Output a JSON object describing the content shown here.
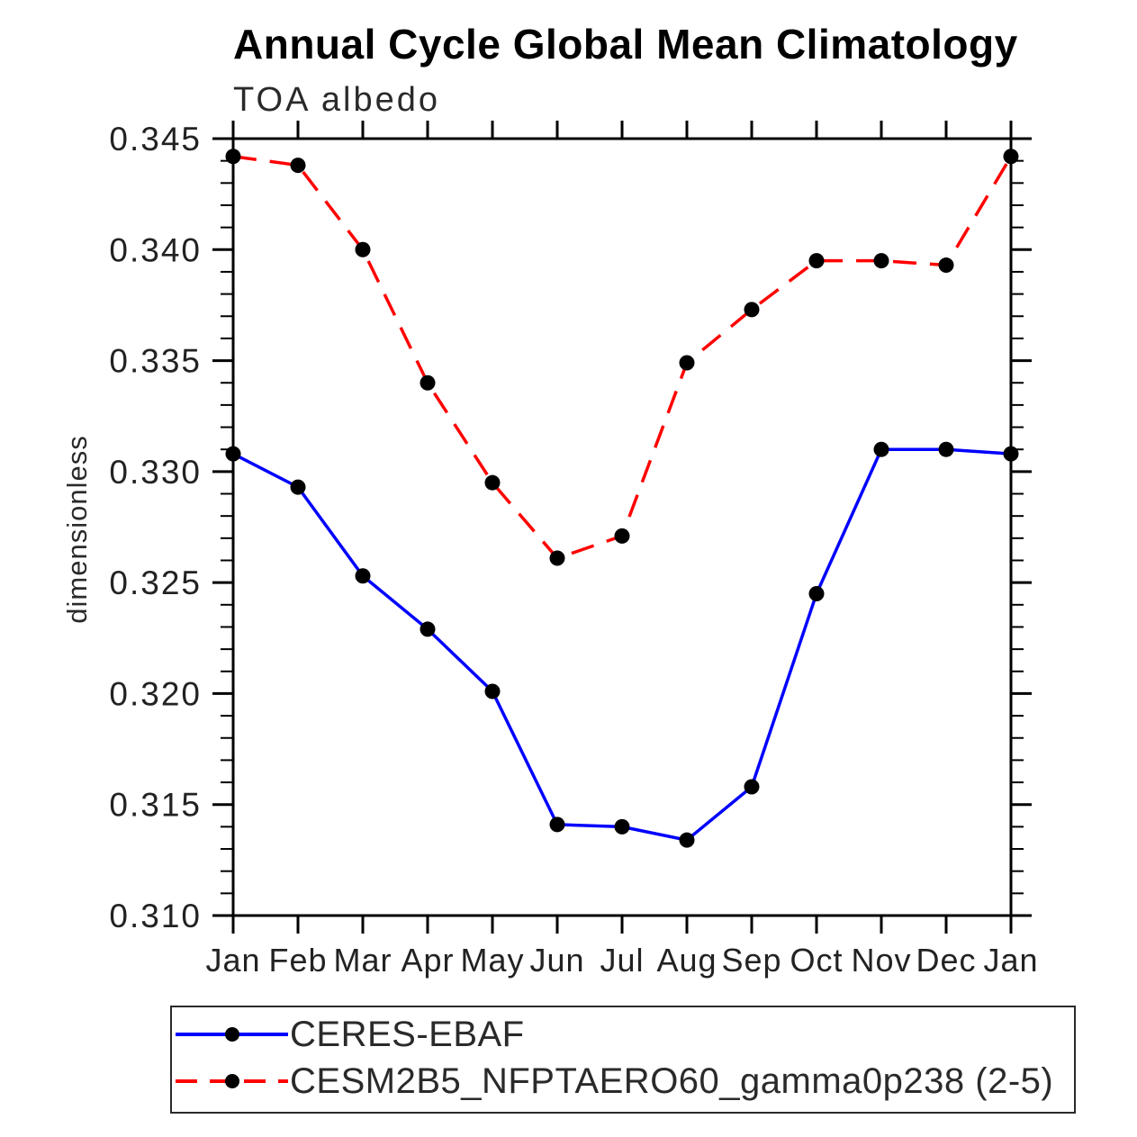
{
  "chart_data": {
    "type": "line",
    "title": "Annual Cycle Global Mean Climatology",
    "subtitle": "TOA albedo",
    "ylabel": "dimensionless",
    "xlabel": "",
    "categories": [
      "Jan",
      "Feb",
      "Mar",
      "Apr",
      "May",
      "Jun",
      "Jul",
      "Aug",
      "Sep",
      "Oct",
      "Nov",
      "Dec",
      "Jan"
    ],
    "ylim": [
      0.31,
      0.345
    ],
    "ytick_values": [
      0.31,
      0.315,
      0.32,
      0.325,
      0.33,
      0.335,
      0.34,
      0.345
    ],
    "ytick_labels": [
      "0.310",
      "0.315",
      "0.320",
      "0.325",
      "0.330",
      "0.335",
      "0.340",
      "0.345"
    ],
    "minor_tick_interval": 0.001,
    "grid": "off",
    "legend_position": "bottom",
    "marker_color": "#000000",
    "axis_color": "#000000",
    "series": [
      {
        "name": "CERES-EBAF",
        "color": "#0000ff",
        "style": "solid",
        "marker": "filled-circle",
        "values": [
          0.3308,
          0.3293,
          0.3253,
          0.3229,
          0.3201,
          0.3141,
          0.314,
          0.3134,
          0.3158,
          0.3245,
          0.331,
          0.331,
          0.3308
        ]
      },
      {
        "name": "CESM2B5_NFPTAERO60_gamma0p238 (2-5)",
        "color": "#ff0000",
        "style": "dashed",
        "marker": "filled-circle",
        "values": [
          0.3442,
          0.3438,
          0.34,
          0.334,
          0.3295,
          0.3261,
          0.3271,
          0.3349,
          0.3373,
          0.3395,
          0.3395,
          0.3393,
          0.3442
        ]
      }
    ]
  }
}
